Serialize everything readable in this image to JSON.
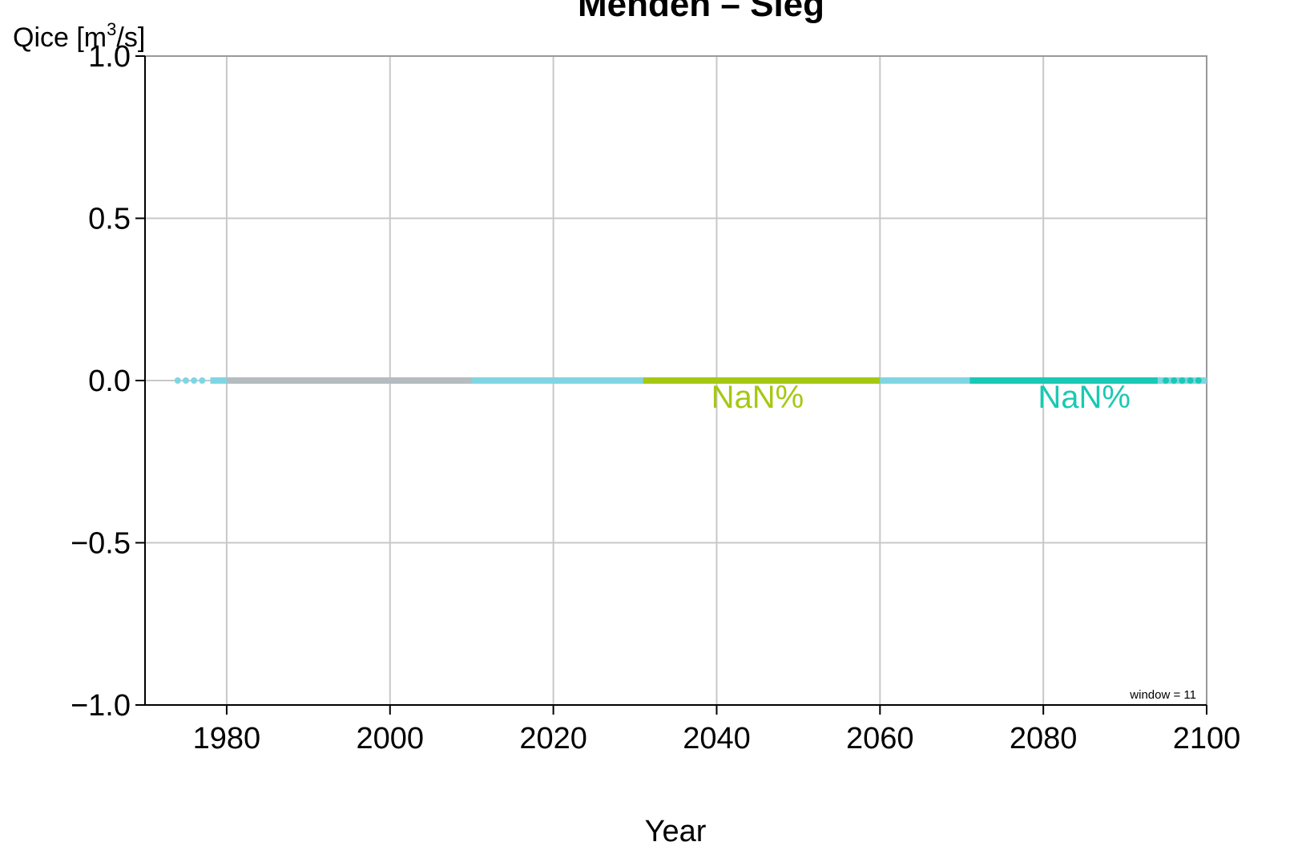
{
  "chart_data": {
    "type": "line",
    "title": "Menden  –  Sieg",
    "ylabel_base": "Qice [m",
    "ylabel_sup": "3",
    "ylabel_tail": "/s]",
    "xlabel": "Year",
    "xlim": [
      1970,
      2100
    ],
    "ylim": [
      -1.0,
      1.0
    ],
    "x_ticks": [
      1980,
      2000,
      2020,
      2040,
      2060,
      2080,
      2100
    ],
    "x_tick_labels": [
      "1980",
      "2000",
      "2020",
      "2040",
      "2060",
      "2080",
      "2100"
    ],
    "y_ticks": [
      -1.0,
      -0.5,
      0.0,
      0.5,
      1.0
    ],
    "y_tick_labels": [
      "−1.0",
      "−0.5",
      "0.0",
      "0.5",
      "1.0"
    ],
    "grid": true,
    "annotation": "window =  11",
    "series": [
      {
        "style": "dots",
        "color": "#7fd6e3",
        "x": [
          1974,
          1975,
          1976,
          1977
        ],
        "y": [
          0,
          0,
          0,
          0
        ]
      },
      {
        "style": "line",
        "color": "#7fd6e3",
        "x": [
          1978,
          2100
        ],
        "y": [
          0,
          0
        ]
      },
      {
        "style": "line",
        "color": "#b5bcbf",
        "x": [
          1980,
          2010
        ],
        "y": [
          0,
          0
        ]
      },
      {
        "style": "line",
        "color": "#a5c814",
        "x": [
          2031,
          2060
        ],
        "y": [
          0,
          0
        ]
      },
      {
        "style": "line",
        "color": "#19c9b4",
        "x": [
          2071,
          2094
        ],
        "y": [
          0,
          0
        ]
      },
      {
        "style": "dots",
        "color": "#19c9b4",
        "x": [
          2095,
          2096,
          2097,
          2098,
          2099
        ],
        "y": [
          0,
          0,
          0,
          0,
          0
        ]
      }
    ],
    "labels": [
      {
        "text": "NaN%",
        "color": "#a5c814",
        "x": 2045,
        "y": 0
      },
      {
        "text": "NaN%",
        "color": "#19c9b4",
        "x": 2085,
        "y": 0
      }
    ]
  }
}
